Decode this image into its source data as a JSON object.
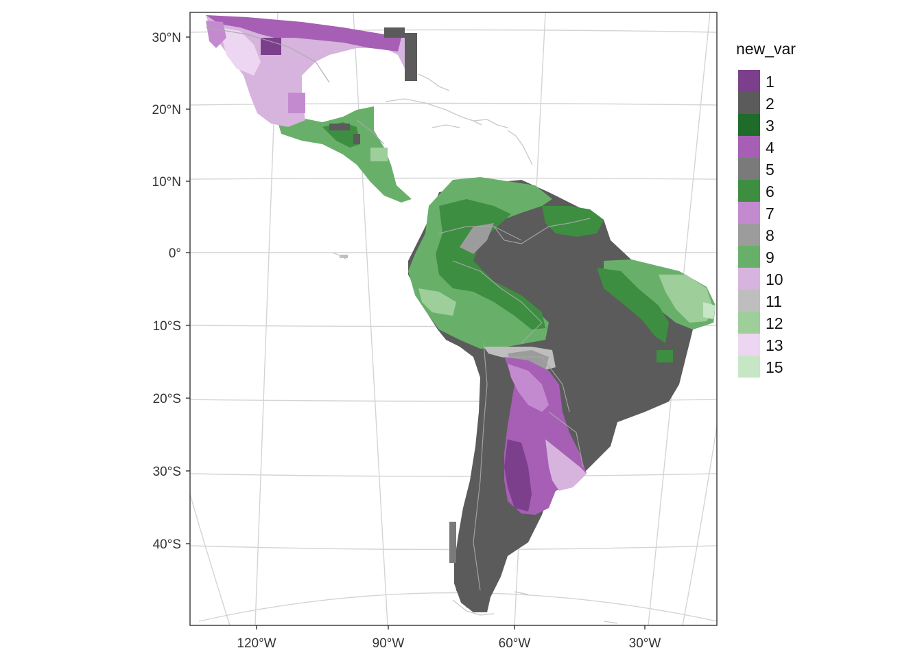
{
  "legend": {
    "title": "new_var",
    "items": [
      {
        "label": "1",
        "color": "#7B3F8C"
      },
      {
        "label": "2",
        "color": "#5B5B5B"
      },
      {
        "label": "3",
        "color": "#1E6B2A"
      },
      {
        "label": "4",
        "color": "#A65FB5"
      },
      {
        "label": "5",
        "color": "#7A7A7A"
      },
      {
        "label": "6",
        "color": "#3E8E41"
      },
      {
        "label": "7",
        "color": "#C48ACF"
      },
      {
        "label": "8",
        "color": "#9C9C9C"
      },
      {
        "label": "9",
        "color": "#68B06A"
      },
      {
        "label": "10",
        "color": "#D7B4DE"
      },
      {
        "label": "11",
        "color": "#BEBEBE"
      },
      {
        "label": "12",
        "color": "#9ECE9A"
      },
      {
        "label": "13",
        "color": "#EDD6F1"
      },
      {
        "label": "15",
        "color": "#C7E6C5"
      }
    ]
  },
  "axes": {
    "lat_labels": [
      "30°N",
      "20°N",
      "10°N",
      "0°",
      "10°S",
      "20°S",
      "30°S",
      "40°S"
    ],
    "lon_labels": [
      "120°W",
      "90°W",
      "60°W",
      "30°W"
    ]
  },
  "colors": {
    "graticule": "#d4d4d4",
    "coastline": "#c8c8c8",
    "borders": "#a9a9a9",
    "panel_border": "#333333"
  }
}
